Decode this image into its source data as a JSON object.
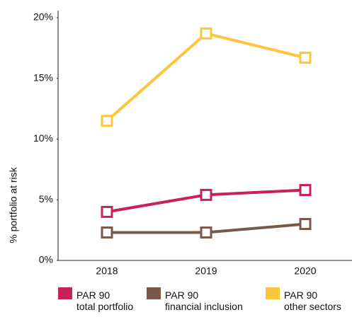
{
  "chart_data": {
    "type": "line",
    "y_label": "% portfolio at risk",
    "categories": [
      "2018",
      "2019",
      "2020"
    ],
    "series": [
      {
        "name": "PAR 90\ntotal portfolio",
        "color": "#c8215a",
        "values": [
          4.0,
          5.4,
          5.8
        ]
      },
      {
        "name": "PAR 90\nfinancial inclusion",
        "color": "#7a574a",
        "values": [
          2.3,
          2.3,
          3.0
        ]
      },
      {
        "name": "PAR 90\nother sectors",
        "color": "#fcc63c",
        "values": [
          11.5,
          18.7,
          16.7
        ]
      }
    ],
    "ylim": [
      0,
      20
    ],
    "yticks": [
      {
        "value": 0,
        "label": "0%"
      },
      {
        "value": 5,
        "label": "5%"
      },
      {
        "value": 10,
        "label": "10%"
      },
      {
        "value": 15,
        "label": "15%"
      },
      {
        "value": 20,
        "label": "20%"
      }
    ],
    "legend": "bottom"
  }
}
